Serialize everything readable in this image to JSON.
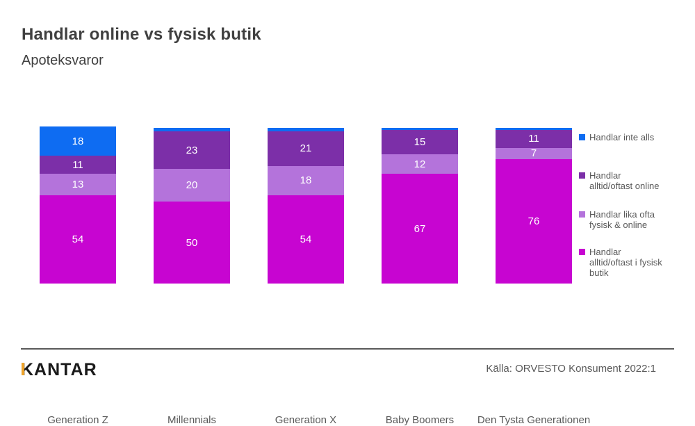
{
  "header": {
    "title": "Handlar online vs fysisk butik",
    "subtitle": "Apoteksvaror"
  },
  "chart_data": {
    "type": "stacked_bar",
    "title": "Handlar online vs fysisk butik",
    "subtitle": "Apoteksvaror",
    "categories": [
      "Generation Z",
      "Millennials",
      "Generation X",
      "Baby Boomers",
      "Den Tysta Generationen"
    ],
    "series_order": "bottom_to_top",
    "series": [
      {
        "name": "Handlar alltid/oftast i fysisk butik",
        "color": "#c705d1",
        "values": [
          54,
          50,
          54,
          67,
          76
        ],
        "display_labels": [
          "54",
          "50",
          "54",
          "67",
          "76"
        ]
      },
      {
        "name": "Handlar lika ofta fysisk & online",
        "color": "#b473db",
        "values": [
          13,
          20,
          18,
          12,
          7
        ],
        "display_labels": [
          "13",
          "20",
          "18",
          "12",
          "7"
        ]
      },
      {
        "name": "Handlar alltid/oftast online",
        "color": "#7c2fa8",
        "values": [
          11,
          23,
          21,
          15,
          11
        ],
        "display_labels": [
          "11",
          "23",
          "21",
          "15",
          "11"
        ]
      },
      {
        "name": "Handlar inte alls",
        "color": "#0e6cf2",
        "values": [
          18,
          2,
          2,
          1,
          1
        ],
        "display_labels": [
          "18",
          "",
          "",
          "",
          ""
        ]
      }
    ],
    "value_label_color": "#ffffff",
    "legend_position": "right",
    "legend": [
      {
        "color": "#0e6cf2",
        "lines": [
          "Handlar inte alls"
        ]
      },
      {
        "color": "#7c2fa8",
        "lines": [
          "Handlar",
          "alltid/oftast online"
        ]
      },
      {
        "color": "#b473db",
        "lines": [
          "Handlar lika ofta",
          "fysisk & online"
        ]
      },
      {
        "color": "#c705d1",
        "lines": [
          "Handlar",
          "alltid/oftast i fysisk",
          "butik"
        ]
      }
    ]
  },
  "footer": {
    "brand": "KANTAR",
    "source": "Källa: ORVESTO Konsument 2022:1"
  }
}
